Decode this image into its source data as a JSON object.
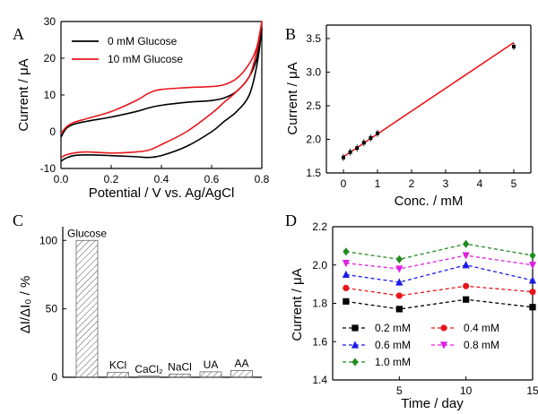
{
  "chart_data": [
    {
      "panel": "A",
      "type": "line",
      "xlabel": "Potential / V vs. Ag/AgCl",
      "ylabel": "Current / μA",
      "xlim": [
        0.0,
        0.8
      ],
      "ylim": [
        -10,
        30
      ],
      "xticks": [
        "0.0",
        "0.2",
        "0.4",
        "0.6",
        "0.8"
      ],
      "yticks": [
        "-10",
        "0",
        "10",
        "20",
        "30"
      ],
      "legend_position": "top-left",
      "series": [
        {
          "name": "0 mM Glucose",
          "color": "#000000",
          "x": [
            0.0,
            0.02,
            0.05,
            0.1,
            0.2,
            0.3,
            0.35,
            0.4,
            0.5,
            0.6,
            0.65,
            0.7,
            0.75,
            0.78,
            0.8,
            0.78,
            0.75,
            0.7,
            0.65,
            0.6,
            0.5,
            0.4,
            0.35,
            0.3,
            0.2,
            0.1,
            0.05,
            0.02,
            0.0
          ],
          "y": [
            -1.5,
            0.8,
            2.0,
            2.8,
            4.0,
            5.5,
            6.5,
            7.2,
            8.0,
            8.5,
            9.2,
            11.0,
            15.0,
            20.0,
            28.0,
            18.0,
            10.0,
            5.5,
            2.8,
            0.0,
            -4.0,
            -6.5,
            -7.0,
            -6.8,
            -6.5,
            -6.3,
            -6.5,
            -7.2,
            -8.0
          ]
        },
        {
          "name": "10 mM Glucose",
          "color": "#e8161b",
          "x": [
            0.0,
            0.02,
            0.05,
            0.1,
            0.2,
            0.3,
            0.35,
            0.4,
            0.5,
            0.6,
            0.65,
            0.7,
            0.75,
            0.78,
            0.8,
            0.78,
            0.75,
            0.7,
            0.65,
            0.6,
            0.5,
            0.4,
            0.35,
            0.3,
            0.2,
            0.1,
            0.05,
            0.02,
            0.0
          ],
          "y": [
            -0.5,
            1.2,
            2.5,
            3.5,
            5.5,
            8.5,
            10.5,
            11.5,
            12.0,
            12.3,
            12.8,
            14.5,
            18.5,
            23.0,
            30.0,
            22.0,
            15.0,
            11.0,
            8.0,
            5.0,
            0.0,
            -3.5,
            -5.0,
            -5.5,
            -5.8,
            -5.5,
            -5.8,
            -6.3,
            -7.0
          ]
        }
      ]
    },
    {
      "panel": "B",
      "type": "scatter",
      "xlabel": "Conc. / mM",
      "ylabel": "Current / μA",
      "xlim": [
        -0.5,
        5.5
      ],
      "ylim": [
        1.5,
        3.7
      ],
      "xticks": [
        "0",
        "1",
        "2",
        "3",
        "4",
        "5"
      ],
      "yticks": [
        "1.5",
        "2.0",
        "2.5",
        "3.0",
        "3.5"
      ],
      "points": {
        "x": [
          0.0,
          0.2,
          0.4,
          0.6,
          0.8,
          1.0,
          5.0
        ],
        "y": [
          1.73,
          1.81,
          1.87,
          1.95,
          2.02,
          2.09,
          3.38
        ]
      },
      "fit_line": {
        "x": [
          0.0,
          5.0
        ],
        "y": [
          1.74,
          3.44
        ],
        "color": "#e8161b"
      }
    },
    {
      "panel": "C",
      "type": "bar",
      "ylabel": "ΔI/ΔI₀ / %",
      "ylim": [
        0,
        110
      ],
      "yticks": [
        "0",
        "50",
        "100"
      ],
      "categories": [
        "Glucose",
        "KCl",
        "CaCl₂",
        "NaCl",
        "UA",
        "AA"
      ],
      "values": [
        100,
        3.5,
        0.8,
        2.2,
        4.0,
        5.0
      ]
    },
    {
      "panel": "D",
      "type": "line",
      "xlabel": "Time / day",
      "ylabel": "Current / μA",
      "xlim": [
        0,
        15
      ],
      "ylim": [
        1.4,
        2.2
      ],
      "xticks": [
        "5",
        "10",
        "15"
      ],
      "yticks": [
        "1.4",
        "1.6",
        "1.8",
        "2.0",
        "2.2"
      ],
      "legend_position": "bottom",
      "x": [
        1,
        5,
        10,
        15
      ],
      "series": [
        {
          "name": "0.2 mM",
          "color": "#000000",
          "marker": "square",
          "values": [
            1.81,
            1.77,
            1.82,
            1.78
          ]
        },
        {
          "name": "0.4 mM",
          "color": "#e8161b",
          "marker": "circle",
          "values": [
            1.88,
            1.84,
            1.89,
            1.86
          ]
        },
        {
          "name": "0.6 mM",
          "color": "#1a1ae6",
          "marker": "triangle-up",
          "values": [
            1.95,
            1.91,
            2.0,
            1.92
          ]
        },
        {
          "name": "0.8 mM",
          "color": "#e01ee0",
          "marker": "triangle-down",
          "values": [
            2.01,
            1.98,
            2.05,
            2.0
          ]
        },
        {
          "name": "1.0 mM",
          "color": "#1f8c1f",
          "marker": "diamond",
          "values": [
            2.07,
            2.03,
            2.11,
            2.05
          ]
        }
      ]
    }
  ]
}
